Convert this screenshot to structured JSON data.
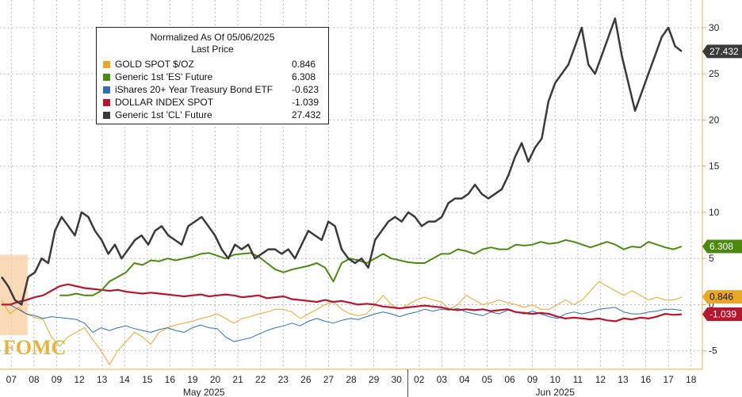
{
  "chart_data": {
    "type": "line",
    "legend": {
      "title_line1": "Normalized As Of 05/06/2025",
      "title_line2": "Last Price",
      "placement": "top-left"
    },
    "annotation": "FOMC",
    "x_day_labels": [
      "07",
      "08",
      "09",
      "12",
      "13",
      "14",
      "15",
      "16",
      "19",
      "20",
      "21",
      "22",
      "23",
      "26",
      "27",
      "28",
      "29",
      "30",
      "02",
      "03",
      "04",
      "05",
      "06",
      "09",
      "10",
      "11",
      "12",
      "13",
      "16",
      "17",
      "18"
    ],
    "x_month_labels": [
      {
        "label": "May 2025",
        "start_day_index": 0,
        "end_day_index": 17
      },
      {
        "label": "Jun 2025",
        "start_day_index": 18,
        "end_day_index": 30
      }
    ],
    "y_ticks": [
      -5,
      0,
      5,
      10,
      15,
      20,
      25,
      30
    ],
    "y_tick_labels": [
      "-5",
      "0",
      "5",
      "10",
      "15",
      "20",
      "25",
      "30"
    ],
    "ylim": [
      -7,
      33
    ],
    "grid": true,
    "series": [
      {
        "name": "GOLD SPOT $/OZ",
        "last_value": "0.846",
        "last_label": "0.846",
        "color": "#e8a825",
        "width": 1,
        "values": [
          0.5,
          -1,
          -0.3,
          -1,
          -1.4,
          -1.6,
          -3.5,
          -4.5,
          -3.5,
          -3,
          -2.5,
          -3.8,
          -5,
          -6.5,
          -5,
          -4,
          -3,
          -3.5,
          -4.3,
          -3,
          -2.5,
          -2.2,
          -2,
          -1.8,
          -1.5,
          -1.3,
          -1,
          -1.5,
          -2,
          -1.5,
          -1.3,
          -1,
          -0.8,
          -0.5,
          -0.5,
          -0.8,
          -1.5,
          -1,
          -0.5,
          0,
          0.3,
          -0.5,
          -1,
          -1.2,
          -1,
          0,
          1,
          0,
          -0.5,
          0,
          0.5,
          0.8,
          0.5,
          0.3,
          -0.5,
          0,
          1,
          0.5,
          0,
          0.2,
          0.5,
          0.2,
          0,
          -0.3,
          0,
          -0.5,
          -0.5,
          0,
          0.5,
          0,
          0.5,
          1.5,
          2.5,
          2,
          1.5,
          1,
          1.5,
          1,
          0.5,
          0.8,
          0.5,
          0.5,
          0.8
        ]
      },
      {
        "name": "Generic 1st 'ES' Future",
        "last_value": "6.308",
        "last_label": "6.308",
        "color": "#4c8a0e",
        "width": 2,
        "values": [
          null,
          null,
          null,
          null,
          null,
          null,
          null,
          1,
          1,
          1.2,
          1,
          1,
          1.5,
          2.5,
          3,
          3.5,
          4.5,
          4.3,
          4.8,
          4.7,
          5,
          4.8,
          5,
          5.2,
          5.5,
          5.6,
          5.3,
          5,
          5.4,
          5.5,
          5.6,
          5.2,
          4.5,
          3.8,
          3.5,
          3.8,
          4,
          4.2,
          4.5,
          4,
          2.5,
          4.5,
          5,
          4.8,
          4.5,
          5,
          5.5,
          5,
          4.8,
          4.6,
          4.5,
          4.5,
          5,
          5.5,
          5.5,
          6,
          5.8,
          5.5,
          6,
          6.2,
          6,
          6,
          6.5,
          6.4,
          6.5,
          6.8,
          6.6,
          6.7,
          7,
          6.8,
          6.5,
          6.2,
          6.5,
          6.8,
          6.5,
          6,
          6.3,
          6.2,
          6.8,
          6.5,
          6.2,
          6,
          6.3
        ]
      },
      {
        "name": "iShares 20+ Year Treasury Bond ETF",
        "last_value": "-0.623",
        "last_label": null,
        "color": "#2e6eb5",
        "width": 1,
        "values": [
          0,
          0,
          -0.5,
          -1,
          -1.2,
          -1.5,
          -1.3,
          -1.4,
          -1.5,
          -1.6,
          -2,
          -3,
          -2.5,
          -2.8,
          -2.5,
          -2.3,
          -2.6,
          -2.8,
          -3,
          -2.7,
          -2.5,
          -2.8,
          -3,
          -2.5,
          -2.2,
          -2.5,
          -2.6,
          -3.5,
          -4,
          -3.8,
          -3.6,
          -3.2,
          -2.8,
          -2.5,
          -2.3,
          -2,
          -2.3,
          -1.8,
          -1.5,
          -1.8,
          -2,
          -1.7,
          -1.5,
          -1.6,
          -1.3,
          -1,
          -0.8,
          -1,
          -1.3,
          -1,
          -0.8,
          -0.5,
          -0.7,
          -0.5,
          -0.6,
          -0.4,
          -0.8,
          -1,
          -1.2,
          -0.8,
          -1,
          -0.6,
          -0.8,
          -1,
          -0.7,
          -1,
          -1.3,
          -1.5,
          -1,
          -0.8,
          -1,
          -0.8,
          -0.5,
          -0.4,
          -0.3,
          -0.8,
          -1,
          -1,
          -0.8,
          -0.7,
          -0.5,
          -0.5,
          -0.623
        ]
      },
      {
        "name": "DOLLAR INDEX SPOT",
        "last_value": "-1.039",
        "last_label": "-1.039",
        "color": "#b8162e",
        "width": 2.2,
        "values": [
          0,
          0,
          0.3,
          0.5,
          0.8,
          1,
          1.5,
          2,
          2.2,
          2,
          1.8,
          1.7,
          1.6,
          1.5,
          1.6,
          1.4,
          1.3,
          1.2,
          1.3,
          1.2,
          1.1,
          1,
          0.9,
          1,
          1.1,
          0.9,
          1,
          1.1,
          1,
          0.8,
          0.9,
          1,
          0.7,
          0.8,
          0.9,
          0.6,
          0.5,
          0.4,
          0.3,
          0.5,
          0.3,
          0.4,
          0.2,
          0,
          0.1,
          0,
          -0.2,
          -0.3,
          -0.4,
          -0.3,
          -0.2,
          -0.1,
          -0.2,
          -0.3,
          -0.5,
          -0.6,
          -0.5,
          -0.6,
          -0.5,
          -0.7,
          -0.6,
          -0.5,
          -0.8,
          -0.9,
          -1,
          -0.9,
          -1,
          -1.3,
          -1.5,
          -1.4,
          -1.5,
          -1.6,
          -1.5,
          -1.7,
          -1.8,
          -1.5,
          -1.6,
          -1.4,
          -1.5,
          -1.3,
          -1,
          -1.1,
          -1.039
        ]
      },
      {
        "name": "Generic 1st 'CL' Future",
        "last_value": "27.432",
        "last_label": "27.432",
        "color": "#3a3a3a",
        "width": 2.5,
        "values": [
          3,
          2,
          0.5,
          0,
          3,
          3.5,
          5,
          4.5,
          8,
          9.5,
          8.5,
          7.5,
          10,
          9.5,
          8,
          7,
          5.5,
          6.5,
          5,
          6,
          7,
          7.5,
          6.5,
          8,
          8.5,
          7.5,
          7,
          6.5,
          8.5,
          9,
          9.5,
          8.5,
          7.5,
          6,
          5,
          6.5,
          6,
          6.5,
          5,
          5.5,
          6,
          6,
          5.5,
          6,
          5,
          6.5,
          8,
          7.5,
          7,
          9,
          8.5,
          6,
          5,
          4.5,
          5,
          4,
          7,
          8,
          9,
          9.5,
          9,
          10,
          9.5,
          8.5,
          9,
          9,
          9.5,
          11,
          11.5,
          11.5,
          12,
          13,
          12,
          11.5,
          12,
          12.5,
          14,
          16,
          17.5,
          15.5,
          17,
          18,
          22,
          24,
          25,
          26,
          28,
          30,
          26,
          25,
          27,
          29,
          31,
          27,
          24,
          21,
          23,
          25,
          27,
          29,
          30,
          28,
          27.432
        ]
      }
    ]
  }
}
